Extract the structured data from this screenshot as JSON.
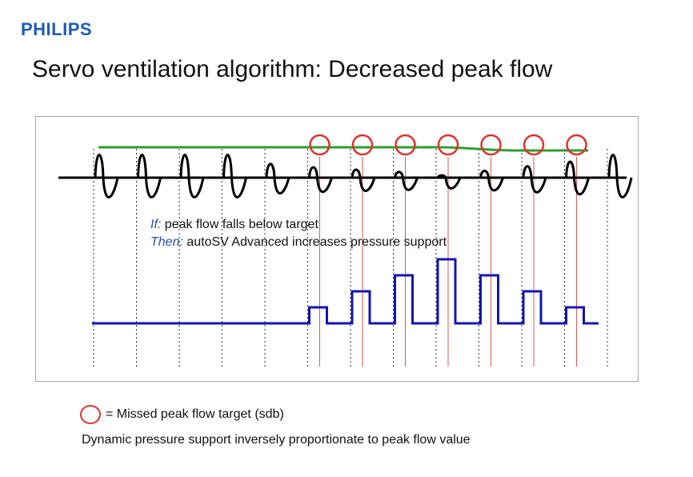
{
  "logo": {
    "text": "PHILIPS",
    "color": "#1f5bb8"
  },
  "title": "Servo ventilation algorithm: Decreased peak flow",
  "diagram": {
    "colors": {
      "flow": "#000000",
      "target": "#2e9e2e",
      "pressure": "#1414b4",
      "missed": "#e0322d",
      "breath_divider": "#333333",
      "missed_divider": "#d85a5a"
    },
    "breaths": [
      {
        "peak": 1.0,
        "missed": false,
        "pressure_support": 0
      },
      {
        "peak": 1.0,
        "missed": false,
        "pressure_support": 0
      },
      {
        "peak": 1.0,
        "missed": false,
        "pressure_support": 0
      },
      {
        "peak": 1.0,
        "missed": false,
        "pressure_support": 0
      },
      {
        "peak": 0.6,
        "missed": false,
        "pressure_support": 0
      },
      {
        "peak": 0.45,
        "missed": true,
        "pressure_support": 1
      },
      {
        "peak": 0.35,
        "missed": true,
        "pressure_support": 2
      },
      {
        "peak": 0.25,
        "missed": true,
        "pressure_support": 3
      },
      {
        "peak": 0.1,
        "missed": true,
        "pressure_support": 4
      },
      {
        "peak": 0.3,
        "missed": true,
        "pressure_support": 3
      },
      {
        "peak": 0.5,
        "missed": true,
        "pressure_support": 2
      },
      {
        "peak": 0.7,
        "missed": true,
        "pressure_support": 1
      },
      {
        "peak": 1.0,
        "missed": false,
        "pressure_support": 0
      }
    ],
    "conditions": [
      {
        "keyword": "If:",
        "text": " peak flow falls below target"
      },
      {
        "keyword": "Then:",
        "text": " autoSV Advanced increases pressure support"
      }
    ]
  },
  "legend": {
    "text": "= Missed peak flow target (sdb)"
  },
  "footnote": "Dynamic pressure support inversely proportionate to peak flow value"
}
